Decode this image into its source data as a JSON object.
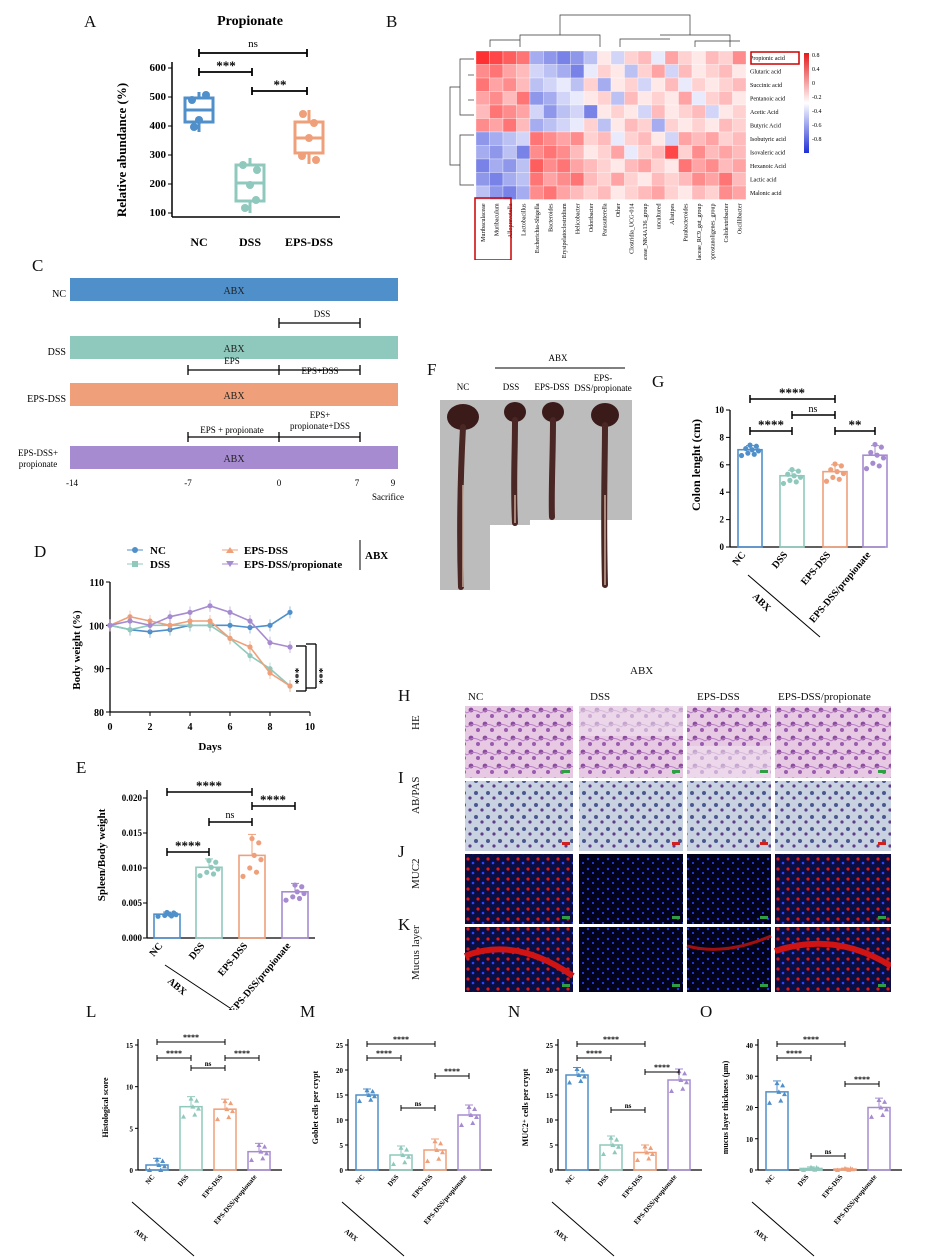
{
  "panel_letters": {
    "A": "A",
    "B": "B",
    "C": "C",
    "D": "D",
    "E": "E",
    "F": "F",
    "G": "G",
    "H": "H",
    "I": "I",
    "J": "J",
    "K": "K",
    "L": "L",
    "M": "M",
    "N": "N",
    "O": "O"
  },
  "panelA": {
    "title": "Propionate",
    "ylabel": "Relative abundance (%)",
    "groups": [
      "NC",
      "DSS",
      "EPS-DSS"
    ],
    "yticks": [
      "100",
      "200",
      "300",
      "400",
      "500",
      "600"
    ],
    "sig": [
      "ns",
      "***",
      "**"
    ]
  },
  "panelB": {
    "rows": [
      "Propionic acid",
      "Glutaric acid",
      "Succinic acid",
      "Pentanoic acid",
      "Acetic Acid",
      "Butyric Acid",
      "Isobutyric acid",
      "Isovaleric acid",
      "Hexanoic Acid",
      "Lactic acid",
      "Malonic acid"
    ],
    "cols": [
      "Muribaculaceae",
      "Muribaculum",
      "Alloprevotella",
      "Lactobacillus",
      "Escherichia-Shigella",
      "Bacteroides",
      "Erysipelatoclostridium",
      "Helicobacter",
      "Odoribacter",
      "Parasutterella",
      "Other",
      "Clostridia_UCG-014",
      "Lachnospiraceae_NK4A136_group",
      "uncultured",
      "Alistipes",
      "Parabacteroides",
      "Rikenellaceae_RC9_gut_group",
      "[Eubacterium]_coprostanoligenes_group",
      "Colidextribacter",
      "Oscillibacter"
    ],
    "legend": [
      "0.8",
      "0.4",
      "0",
      "-0.2",
      "-0.4",
      "-0.6",
      "-0.8"
    ]
  },
  "panelC": {
    "rows": [
      "NC",
      "DSS",
      "EPS-DSS",
      "EPS-DSS+\npropionate"
    ],
    "bar_label": "ABX",
    "bracket_dss": "DSS",
    "bracket_eps": "EPS",
    "bracket_eps_dss": "EPS+DSS",
    "bracket_eps_prop": "EPS + propionate",
    "bracket_eps_prop_dss": "EPS+\npropionate+DSS",
    "ticks": [
      "-14",
      "-7",
      "0",
      "7",
      "9"
    ],
    "sacrifice": "Sacrifice",
    "colors": {
      "NC": "#4f8fca",
      "DSS": "#8fc8bc",
      "EPS-DSS": "#efa07a",
      "prop": "#a68bd0"
    }
  },
  "panelD": {
    "legend": [
      "NC",
      "DSS",
      "EPS-DSS",
      "EPS-DSS/propionate"
    ],
    "abx": "ABX",
    "ylabel": "Body weight (%)",
    "xlabel": "Days",
    "xticks": [
      "0",
      "2",
      "4",
      "6",
      "8",
      "10"
    ],
    "yticks": [
      "80",
      "90",
      "100",
      "110"
    ],
    "sig": [
      "***",
      "***"
    ]
  },
  "panelE": {
    "ylabel": "Spleen/Body weight",
    "yticks": [
      "0.000",
      "0.005",
      "0.010",
      "0.015",
      "0.020"
    ],
    "groups": [
      "NC",
      "DSS",
      "EPS-DSS",
      "EPS-DSS/propionate"
    ],
    "abx": "ABX",
    "sig": [
      "****",
      "ns",
      "****",
      "****"
    ]
  },
  "panelF": {
    "abx": "ABX",
    "labels": [
      "NC",
      "DSS",
      "EPS-DSS",
      "EPS-\nDSS/propionate"
    ]
  },
  "panelG": {
    "ylabel": "Colon lenght (cm)",
    "yticks": [
      "0",
      "2",
      "4",
      "6",
      "8",
      "10"
    ],
    "groups": [
      "NC",
      "DSS",
      "EPS-DSS",
      "EPS-DSS/propionate"
    ],
    "abx": "ABX",
    "sig": [
      "****",
      "****",
      "ns",
      "**"
    ]
  },
  "histology": {
    "abx": "ABX",
    "cols": [
      "NC",
      "DSS",
      "EPS-DSS",
      "EPS-DSS/propionate"
    ],
    "rows": [
      "HE",
      "AB/PAS",
      "MUC2",
      "Mucus layer"
    ]
  },
  "panelL": {
    "ylabel": "Histological score",
    "yticks": [
      "0",
      "5",
      "10",
      "15"
    ],
    "groups": [
      "NC",
      "DSS",
      "EPS-DSS",
      "EPS-DSS/propionate"
    ],
    "abx": "ABX",
    "sig": [
      "****",
      "****",
      "ns",
      "****"
    ]
  },
  "panelM": {
    "ylabel": "Goblet cells per crypt",
    "yticks": [
      "0",
      "5",
      "10",
      "15",
      "20",
      "25"
    ],
    "groups": [
      "NC",
      "DSS",
      "EPS-DSS",
      "EPS-DSS/propionate"
    ],
    "abx": "ABX",
    "sig": [
      "****",
      "****",
      "ns",
      "****"
    ]
  },
  "panelN": {
    "ylabel": "MUC2⁺ cells per crypt",
    "yticks": [
      "0",
      "5",
      "10",
      "15",
      "20",
      "25"
    ],
    "groups": [
      "NC",
      "DSS",
      "EPS-DSS",
      "EPS-DSS/propionate"
    ],
    "abx": "ABX",
    "sig": [
      "****",
      "****",
      "ns",
      "****"
    ]
  },
  "panelO": {
    "ylabel": "mucus layer thickness (μm)",
    "yticks": [
      "0",
      "10",
      "20",
      "30",
      "40"
    ],
    "groups": [
      "NC",
      "DSS",
      "EPS-DSS",
      "EPS-DSS/propionate"
    ],
    "abx": "ABX",
    "sig": [
      "****",
      "****",
      "ns",
      "****"
    ]
  },
  "chart_data": [
    {
      "type": "bar",
      "panel": "A",
      "categories": [
        "NC",
        "DSS",
        "EPS-DSS"
      ],
      "values": [
        435,
        195,
        345
      ],
      "ylim": [
        100,
        600
      ]
    },
    {
      "type": "line",
      "panel": "D",
      "x": [
        0,
        1,
        2,
        3,
        4,
        5,
        6,
        7,
        8,
        9
      ],
      "series": [
        {
          "name": "NC",
          "values": [
            100,
            99,
            98.5,
            99,
            100,
            100,
            100,
            99.5,
            100,
            103
          ]
        },
        {
          "name": "DSS",
          "values": [
            100,
            99,
            100,
            100,
            100,
            100,
            97,
            93,
            90,
            86
          ]
        },
        {
          "name": "EPS-DSS",
          "values": [
            100,
            102,
            101,
            100,
            101,
            101,
            97,
            95,
            89,
            86
          ]
        },
        {
          "name": "EPS-DSS/propionate",
          "values": [
            100,
            101,
            100,
            102,
            103,
            104.5,
            103,
            101,
            96,
            95
          ]
        }
      ],
      "ylim": [
        80,
        110
      ]
    },
    {
      "type": "bar",
      "panel": "E",
      "categories": [
        "NC",
        "DSS",
        "EPS-DSS",
        "EPS-DSS/propionate"
      ],
      "values": [
        0.0034,
        0.0101,
        0.0118,
        0.0066
      ],
      "ylim": [
        0,
        0.02
      ]
    },
    {
      "type": "bar",
      "panel": "G",
      "categories": [
        "NC",
        "DSS",
        "EPS-DSS",
        "EPS-DSS/propionate"
      ],
      "values": [
        7.1,
        5.2,
        5.5,
        6.7
      ],
      "ylim": [
        0,
        10
      ]
    },
    {
      "type": "bar",
      "panel": "L",
      "categories": [
        "NC",
        "DSS",
        "EPS-DSS",
        "EPS-DSS/propionate"
      ],
      "values": [
        0.6,
        7.6,
        7.3,
        2.2
      ],
      "ylim": [
        0,
        15
      ]
    },
    {
      "type": "bar",
      "panel": "M",
      "categories": [
        "NC",
        "DSS",
        "EPS-DSS",
        "EPS-DSS/propionate"
      ],
      "values": [
        15,
        3,
        4,
        11
      ],
      "ylim": [
        0,
        25
      ]
    },
    {
      "type": "bar",
      "panel": "N",
      "categories": [
        "NC",
        "DSS",
        "EPS-DSS",
        "EPS-DSS/propionate"
      ],
      "values": [
        19,
        5,
        3.5,
        18
      ],
      "ylim": [
        0,
        25
      ]
    },
    {
      "type": "bar",
      "panel": "O",
      "categories": [
        "NC",
        "DSS",
        "EPS-DSS",
        "EPS-DSS/propionate"
      ],
      "values": [
        25,
        0.5,
        0.3,
        20
      ],
      "ylim": [
        0,
        40
      ]
    }
  ]
}
